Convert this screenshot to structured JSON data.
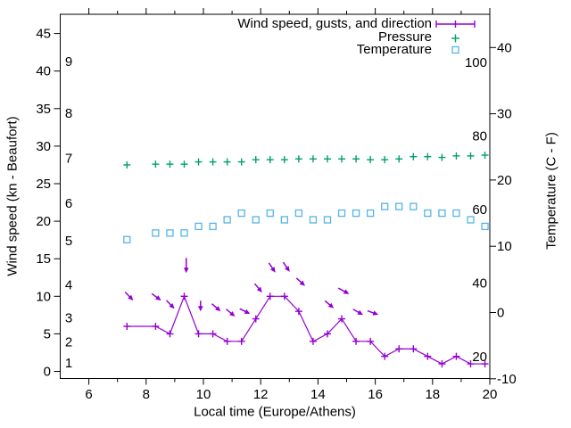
{
  "figure": {
    "xlabel": "Local time (Europe/Athens)",
    "ylabel_left": "Wind speed (kn - Beaufort)",
    "ylabel_right": "Temperature (C - F)",
    "legend": [
      {
        "label": "Wind speed, gusts, and direction",
        "series": "wind"
      },
      {
        "label": "Pressure",
        "series": "pressure"
      },
      {
        "label": "Temperature",
        "series": "temperature"
      }
    ]
  },
  "colors": {
    "wind": "#9400d3",
    "pressure": "#009e73",
    "temperature": "#56b4e9",
    "axis": "#000000"
  },
  "chart_data": {
    "type": "line",
    "title": "",
    "xlabel": "Local time (Europe/Athens)",
    "ylabel_left": "Wind speed (kn - Beaufort)",
    "ylabel_right": "Temperature (C - F)",
    "axes": {
      "x_range_hours": [
        5,
        20
      ],
      "x_major_ticks": [
        6,
        8,
        10,
        12,
        14,
        16,
        18,
        20
      ],
      "x_minor_ticks": [
        7,
        9,
        11,
        13,
        15,
        17,
        19
      ],
      "y_left_knots_ticks": [
        0,
        5,
        10,
        15,
        20,
        25,
        30,
        35,
        40,
        45
      ],
      "y_left_range_knots": [
        -1,
        47.5
      ],
      "y_right_celsius_ticks": [
        -10,
        0,
        10,
        20,
        30,
        40
      ],
      "y_right_range_celsius": [
        -10,
        45
      ],
      "beaufort_inner_labels": [
        {
          "label": "1",
          "kn": 1.1
        },
        {
          "label": "2",
          "kn": 3.9
        },
        {
          "label": "3",
          "kn": 7.1
        },
        {
          "label": "4",
          "kn": 11.5
        },
        {
          "label": "5",
          "kn": 17.4
        },
        {
          "label": "6",
          "kn": 22.4
        },
        {
          "label": "7",
          "kn": 28.4
        },
        {
          "label": "8",
          "kn": 34.4
        },
        {
          "label": "9",
          "kn": 41.3
        }
      ],
      "fahrenheit_inner_labels": [
        {
          "label": "20",
          "f": 20
        },
        {
          "label": "40",
          "f": 40
        },
        {
          "label": "60",
          "f": 60
        },
        {
          "label": "80",
          "f": 80
        },
        {
          "label": "100",
          "f": 100
        }
      ],
      "grid": false
    },
    "x": [
      7.33,
      8.33,
      8.83,
      9.33,
      9.83,
      10.33,
      10.83,
      11.33,
      11.83,
      12.33,
      12.83,
      13.33,
      13.83,
      14.33,
      14.83,
      15.33,
      15.83,
      16.33,
      16.83,
      17.33,
      17.83,
      18.33,
      18.83,
      19.33,
      19.83
    ],
    "series": [
      {
        "name": "Wind speed",
        "axis": "left_knots",
        "style": "line_with_plus_markers",
        "values_kn": [
          6,
          6,
          5,
          10,
          5,
          5,
          4,
          4,
          7,
          10,
          10,
          8,
          4,
          5,
          7,
          4,
          4,
          2,
          3,
          3,
          2,
          1,
          2,
          1,
          1
        ]
      },
      {
        "name": "Pressure",
        "axis": "hidden (no pressure scale shown; positions given in left-axis knot units)",
        "style": "plus_markers_only",
        "values_kn": [
          27.5,
          27.6,
          27.6,
          27.6,
          27.9,
          27.9,
          27.9,
          27.9,
          28.2,
          28.2,
          28.2,
          28.3,
          28.3,
          28.3,
          28.3,
          28.3,
          28.2,
          28.2,
          28.3,
          28.6,
          28.6,
          28.5,
          28.7,
          28.7,
          28.8
        ]
      },
      {
        "name": "Temperature",
        "axis": "right_celsius",
        "style": "open_square_markers_only",
        "values_c": [
          11,
          12,
          12,
          12,
          13,
          13,
          14,
          15,
          14,
          15,
          14,
          15,
          14,
          14,
          15,
          15,
          15,
          16,
          16,
          16,
          15,
          15,
          15,
          14,
          13
        ]
      }
    ],
    "wind_direction_arrows": [
      {
        "t": 7.41,
        "kn": 10.0,
        "angle_deg": 46,
        "len": 13
      },
      {
        "t": 8.36,
        "kn": 9.9,
        "angle_deg": 36,
        "len": 13
      },
      {
        "t": 8.85,
        "kn": 8.9,
        "angle_deg": 46,
        "len": 13
      },
      {
        "t": 9.4,
        "kn": 14.1,
        "angle_deg": 90,
        "len": 17
      },
      {
        "t": 9.9,
        "kn": 8.7,
        "angle_deg": 90,
        "len": 12
      },
      {
        "t": 10.45,
        "kn": 8.5,
        "angle_deg": 40,
        "len": 13
      },
      {
        "t": 10.95,
        "kn": 7.8,
        "angle_deg": 40,
        "len": 13
      },
      {
        "t": 11.45,
        "kn": 8.0,
        "angle_deg": 26,
        "len": 13
      },
      {
        "t": 11.92,
        "kn": 11.1,
        "angle_deg": 50,
        "len": 13
      },
      {
        "t": 12.4,
        "kn": 13.8,
        "angle_deg": 56,
        "len": 13
      },
      {
        "t": 12.9,
        "kn": 13.9,
        "angle_deg": 56,
        "len": 13
      },
      {
        "t": 13.4,
        "kn": 11.9,
        "angle_deg": 42,
        "len": 13
      },
      {
        "t": 14.4,
        "kn": 8.9,
        "angle_deg": 40,
        "len": 13
      },
      {
        "t": 14.9,
        "kn": 10.7,
        "angle_deg": 28,
        "len": 14
      },
      {
        "t": 15.4,
        "kn": 7.9,
        "angle_deg": 30,
        "len": 13
      },
      {
        "t": 15.92,
        "kn": 7.8,
        "angle_deg": 20,
        "len": 13
      }
    ]
  }
}
